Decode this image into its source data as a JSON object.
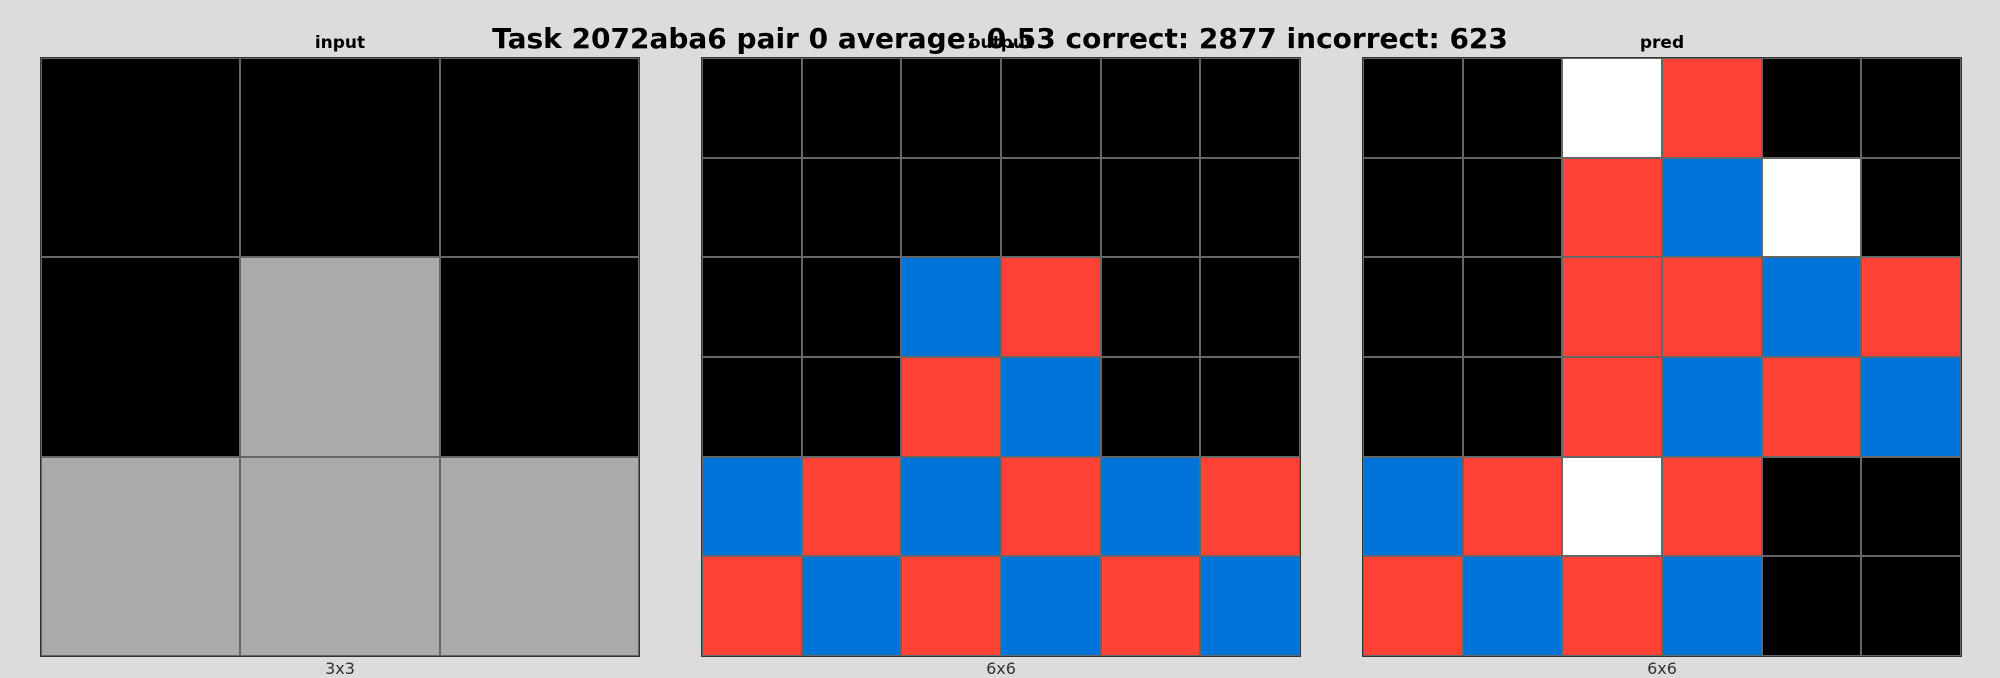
{
  "title": "Task 2072aba6 pair 0 average: 0.53 correct: 2877 incorrect: 623",
  "palette": {
    "0": "#000000",
    "1": "#0074d9",
    "2": "#ff4136",
    "5": "#aaaaaa",
    "9": "#ffffff"
  },
  "panels": [
    {
      "label": "input",
      "dims": "3x3",
      "grid": [
        [
          0,
          0,
          0
        ],
        [
          0,
          5,
          0
        ],
        [
          5,
          5,
          5
        ]
      ]
    },
    {
      "label": "output",
      "dims": "6x6",
      "grid": [
        [
          0,
          0,
          0,
          0,
          0,
          0
        ],
        [
          0,
          0,
          0,
          0,
          0,
          0
        ],
        [
          0,
          0,
          1,
          2,
          0,
          0
        ],
        [
          0,
          0,
          2,
          1,
          0,
          0
        ],
        [
          1,
          2,
          1,
          2,
          1,
          2
        ],
        [
          2,
          1,
          2,
          1,
          2,
          1
        ]
      ]
    },
    {
      "label": "pred",
      "dims": "6x6",
      "grid": [
        [
          0,
          0,
          9,
          2,
          0,
          0
        ],
        [
          0,
          0,
          2,
          1,
          9,
          0
        ],
        [
          0,
          0,
          2,
          2,
          1,
          2
        ],
        [
          0,
          0,
          2,
          1,
          2,
          1
        ],
        [
          1,
          2,
          9,
          2,
          0,
          0
        ],
        [
          2,
          1,
          2,
          1,
          0,
          0
        ]
      ]
    }
  ]
}
